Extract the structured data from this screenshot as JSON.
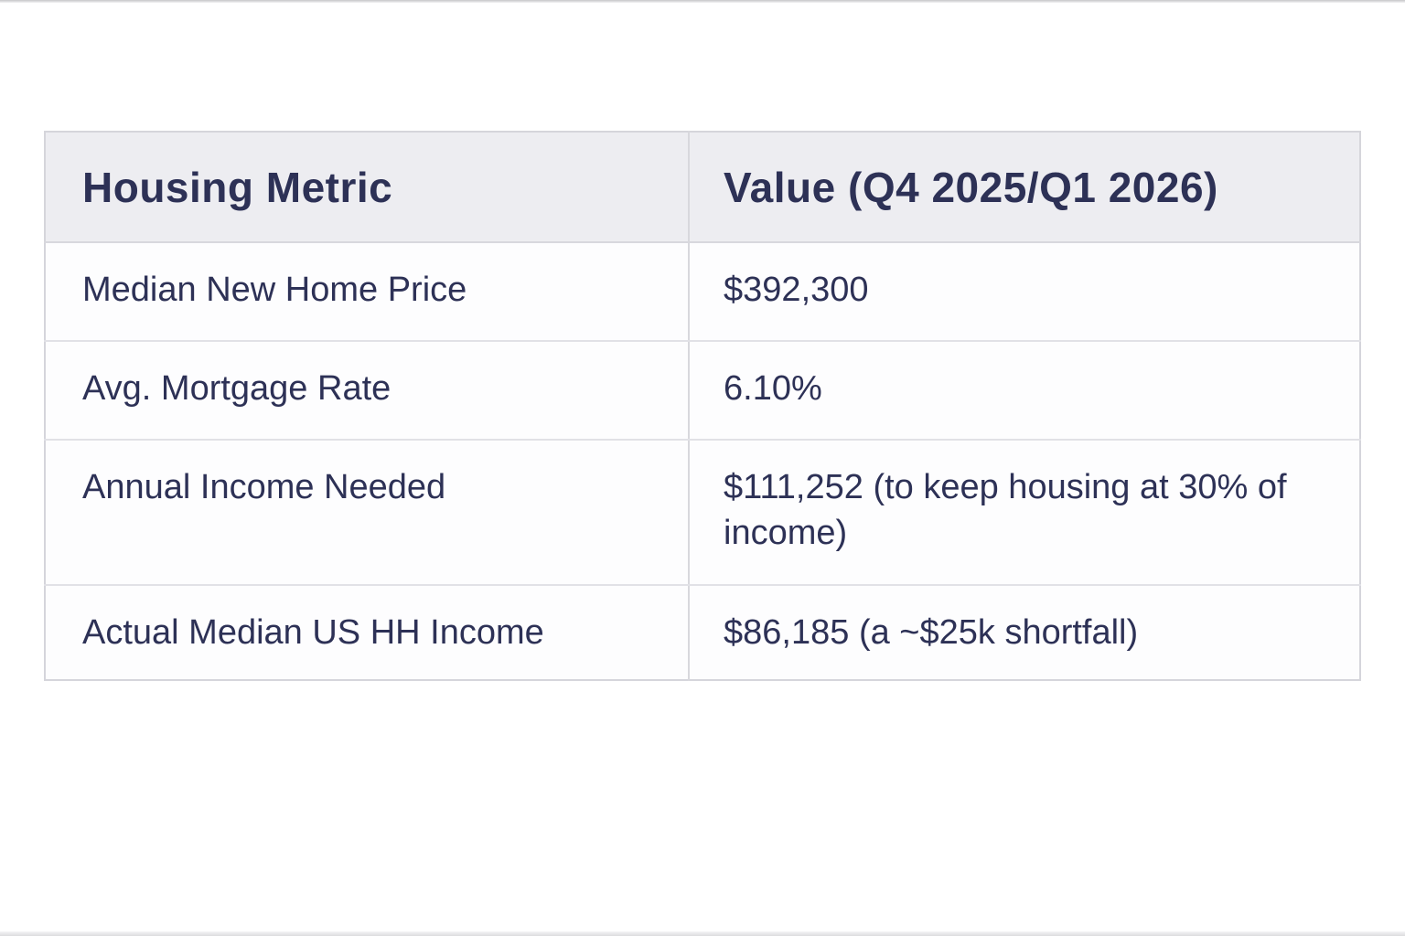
{
  "page": {
    "background_color": "#ffffff",
    "text_color": "#2d3156",
    "header_background_color": "#ededf1",
    "border_color": "#d5d5db"
  },
  "table": {
    "columns": [
      {
        "label": "Housing Metric"
      },
      {
        "label": "Value (Q4 2025/Q1 2026)"
      }
    ],
    "rows": [
      {
        "metric": "Median New Home Price",
        "value": "$392,300"
      },
      {
        "metric": "Avg. Mortgage Rate",
        "value": "6.10%"
      },
      {
        "metric": "Annual Income Needed",
        "value": "$111,252 (to keep housing at 30% of income)"
      },
      {
        "metric": "Actual Median US HH Income",
        "value": "$86,185 (a ~$25k shortfall)"
      }
    ]
  }
}
